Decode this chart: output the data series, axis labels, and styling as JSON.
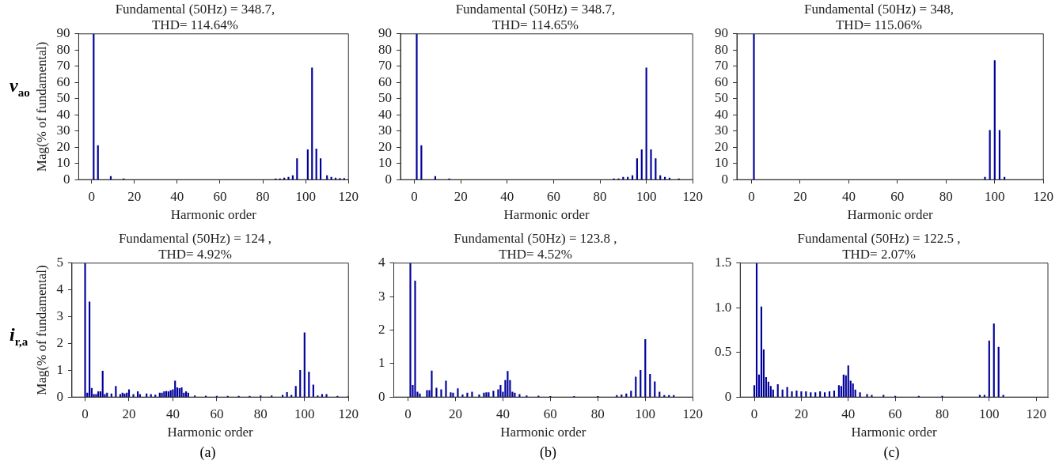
{
  "chart_data": [
    {
      "type": "bar",
      "title": "Fundamental (50Hz) = 348.7,",
      "subtitle": "THD= 114.64%",
      "xlabel": "Harmonic order",
      "ylabel": "Mag(% of fundamental)",
      "annotations": [
        "v$_{ao}$"
      ],
      "xlim": [
        -6,
        120
      ],
      "xticks": [
        0,
        20,
        40,
        60,
        80,
        100,
        120
      ],
      "ylim": [
        0,
        90
      ],
      "yticks": [
        0,
        10,
        20,
        30,
        40,
        50,
        60,
        70,
        80,
        90
      ],
      "color": "#00009c",
      "x": [
        1,
        3,
        9,
        15,
        86,
        88,
        90,
        92,
        94,
        96,
        101,
        103,
        105,
        107,
        110,
        112,
        114,
        116,
        118
      ],
      "values": [
        90,
        21,
        2,
        0.5,
        0.5,
        0.5,
        1,
        1.5,
        2.5,
        13,
        18.5,
        69,
        19,
        13,
        2.5,
        1.5,
        1,
        0.8,
        0.8
      ]
    },
    {
      "type": "bar",
      "title": "Fundamental (50Hz) = 348.7,",
      "subtitle": "THD= 114.65%",
      "xlabel": "Harmonic order",
      "xlim": [
        -6,
        120
      ],
      "xticks": [
        0,
        20,
        40,
        60,
        80,
        100,
        120
      ],
      "ylim": [
        0,
        90
      ],
      "yticks": [
        0,
        10,
        20,
        30,
        40,
        50,
        60,
        70,
        80,
        90
      ],
      "color": "#00009c",
      "x": [
        1,
        3,
        9,
        15,
        86,
        88,
        90,
        92,
        94,
        96,
        98,
        100,
        102,
        104,
        106,
        108,
        110,
        114
      ],
      "values": [
        90,
        21,
        2,
        0.5,
        0.5,
        0.5,
        1.5,
        1.5,
        2.5,
        13,
        18.5,
        69,
        18.5,
        13,
        2.5,
        1.5,
        1,
        0.5
      ]
    },
    {
      "type": "bar",
      "title": "Fundamental (50Hz) = 348,",
      "subtitle": "THD= 115.06%",
      "xlabel": "Harmonic order",
      "xlim": [
        -6,
        120
      ],
      "xticks": [
        0,
        20,
        40,
        60,
        80,
        100,
        120
      ],
      "ylim": [
        0,
        90
      ],
      "yticks": [
        0,
        10,
        20,
        30,
        40,
        50,
        60,
        70,
        80,
        90
      ],
      "color": "#00009c",
      "x": [
        1,
        96,
        98,
        100,
        102,
        104
      ],
      "values": [
        90,
        1.5,
        30.5,
        73.5,
        30.5,
        1.5
      ]
    },
    {
      "type": "bar",
      "title": "Fundamental (50Hz) = 124 ,",
      "subtitle": "THD= 4.92%",
      "xlabel": "Harmonic order",
      "ylabel": "Mag(% of fundamental)",
      "annotations": [
        "i$_{r,a}$",
        "(a)"
      ],
      "xlim": [
        -6,
        120
      ],
      "xticks": [
        0,
        20,
        40,
        60,
        80,
        100,
        120
      ],
      "ylim": [
        0,
        5
      ],
      "yticks": [
        0,
        1,
        2,
        3,
        4,
        5
      ],
      "color": "#00009c",
      "x": [
        0,
        1,
        2,
        3,
        4,
        5,
        6,
        7,
        8,
        9,
        10,
        12,
        14,
        16,
        17,
        18,
        19,
        20,
        22,
        24,
        25,
        28,
        30,
        32,
        34,
        35,
        36,
        37,
        38,
        39,
        40,
        41,
        42,
        43,
        44,
        45,
        46,
        47,
        50,
        55,
        60,
        65,
        70,
        75,
        80,
        85,
        90,
        92,
        94,
        96,
        98,
        100,
        102,
        104,
        106,
        108,
        110,
        115,
        120
      ],
      "values": [
        5,
        0.15,
        3.55,
        0.33,
        0.1,
        0.1,
        0.2,
        0.2,
        0.97,
        0.1,
        0.15,
        0.12,
        0.4,
        0.1,
        0.15,
        0.12,
        0.15,
        0.28,
        0.1,
        0.2,
        0.1,
        0.12,
        0.1,
        0.08,
        0.15,
        0.15,
        0.2,
        0.22,
        0.2,
        0.25,
        0.28,
        0.6,
        0.35,
        0.32,
        0.35,
        0.15,
        0.2,
        0.15,
        0.05,
        0.04,
        0.03,
        0.03,
        0.03,
        0.03,
        0.05,
        0.05,
        0.07,
        0.17,
        0.07,
        0.4,
        1.0,
        2.4,
        0.93,
        0.45,
        0.05,
        0.1,
        0.1,
        0.03,
        0.03
      ]
    },
    {
      "type": "bar",
      "title": "Fundamental (50Hz) = 123.8 ,",
      "subtitle": "THD= 4.52%",
      "xlabel": "Harmonic order",
      "annotations": [
        "(b)"
      ],
      "xlim": [
        -6,
        120
      ],
      "xticks": [
        0,
        20,
        40,
        60,
        80,
        100,
        120
      ],
      "ylim": [
        0,
        4
      ],
      "yticks": [
        0,
        1,
        2,
        3,
        4
      ],
      "color": "#00009c",
      "x": [
        1,
        2,
        3,
        4,
        5,
        8,
        9,
        10,
        12,
        14,
        16,
        18,
        19,
        21,
        23,
        25,
        27,
        30,
        32,
        33,
        34,
        36,
        38,
        39,
        40,
        41,
        42,
        43,
        44,
        45,
        47,
        50,
        55,
        60,
        70,
        80,
        88,
        90,
        92,
        94,
        96,
        98,
        100,
        102,
        104,
        106,
        108,
        110,
        112
      ],
      "values": [
        4,
        0.35,
        3.47,
        0.15,
        0.1,
        0.2,
        0.2,
        0.78,
        0.27,
        0.22,
        0.48,
        0.13,
        0.12,
        0.25,
        0.07,
        0.12,
        0.15,
        0.07,
        0.12,
        0.13,
        0.13,
        0.18,
        0.22,
        0.35,
        0.15,
        0.5,
        0.77,
        0.5,
        0.15,
        0.12,
        0.08,
        0.04,
        0.03,
        0.02,
        0.02,
        0.02,
        0.05,
        0.07,
        0.1,
        0.18,
        0.6,
        0.8,
        1.72,
        0.68,
        0.46,
        0.15,
        0.05,
        0.05,
        0.05
      ]
    },
    {
      "type": "bar",
      "title": "Fundamental (50Hz) = 122.5 ,",
      "subtitle": "THD= 2.07%",
      "xlabel": "Harmonic order",
      "annotations": [
        "(c)"
      ],
      "xlim": [
        -6,
        125
      ],
      "xticks": [
        0,
        20,
        40,
        60,
        80,
        100,
        120
      ],
      "ylim": [
        0,
        1.5
      ],
      "yticks": [
        0,
        0.5,
        {
          "value": 1,
          "label": "1.0"
        },
        1.5
      ],
      "color": "#00009c",
      "x": [
        0,
        1,
        2,
        3,
        4,
        5,
        6,
        7,
        8,
        10,
        12,
        14,
        16,
        18,
        20,
        22,
        24,
        26,
        28,
        30,
        32,
        34,
        36,
        37,
        38,
        39,
        40,
        41,
        42,
        43,
        45,
        48,
        50,
        55,
        60,
        70,
        80,
        96,
        98,
        100,
        102,
        104,
        106
      ],
      "values": [
        0.13,
        1.5,
        0.25,
        1.01,
        0.53,
        0.22,
        0.17,
        0.12,
        0.08,
        0.14,
        0.08,
        0.11,
        0.06,
        0.07,
        0.06,
        0.06,
        0.05,
        0.05,
        0.06,
        0.05,
        0.06,
        0.07,
        0.13,
        0.12,
        0.25,
        0.24,
        0.35,
        0.18,
        0.15,
        0.08,
        0.05,
        0.03,
        0.02,
        0.02,
        0.01,
        0.01,
        0.01,
        0.02,
        0.02,
        0.63,
        0.82,
        0.56,
        0.02
      ]
    }
  ]
}
